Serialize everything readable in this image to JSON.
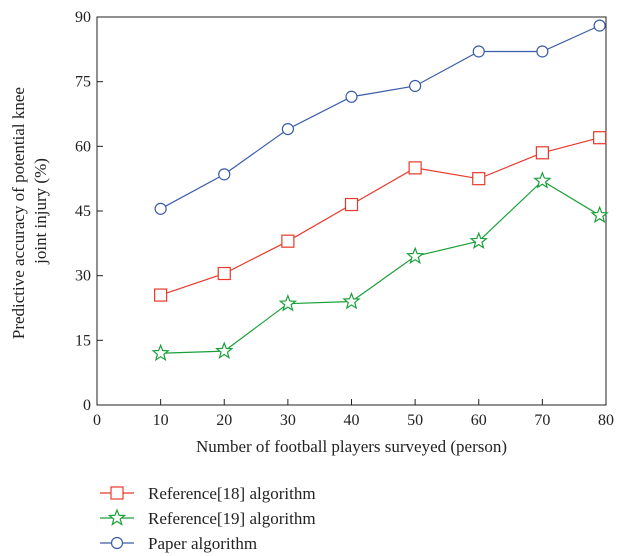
{
  "chart_data": {
    "type": "line",
    "title": "",
    "xlabel": "Number of football players surveyed (person)",
    "ylabel_lines": [
      "Predictive accuracy of potential knee",
      "joint injury (%)"
    ],
    "xlim": [
      0,
      80
    ],
    "ylim": [
      0,
      90
    ],
    "x_ticks": [
      "0",
      "10",
      "20",
      "30",
      "40",
      "50",
      "60",
      "70",
      "80"
    ],
    "y_ticks": [
      "0",
      "15",
      "30",
      "45",
      "60",
      "75",
      "90"
    ],
    "grid": false,
    "legend_position": "bottom-left",
    "series": [
      {
        "name": "Reference[18] algorithm",
        "marker": "square",
        "color": "#e8392a",
        "x": [
          10,
          20,
          30,
          40,
          50,
          60,
          70,
          79
        ],
        "y": [
          25.5,
          30.5,
          38,
          46.5,
          55,
          52.5,
          58.5,
          62
        ]
      },
      {
        "name": "Reference[19] algorithm",
        "marker": "star",
        "color": "#1aa03a",
        "x": [
          10,
          20,
          30,
          40,
          50,
          60,
          70,
          79
        ],
        "y": [
          12,
          12.5,
          23.5,
          24,
          34.5,
          38,
          52,
          44
        ]
      },
      {
        "name": "Paper algorithm",
        "marker": "circle",
        "color": "#3a5ca8",
        "x": [
          10,
          20,
          30,
          40,
          50,
          60,
          70,
          79
        ],
        "y": [
          45.5,
          53.5,
          64,
          71.5,
          74,
          82,
          82,
          88
        ]
      }
    ]
  }
}
